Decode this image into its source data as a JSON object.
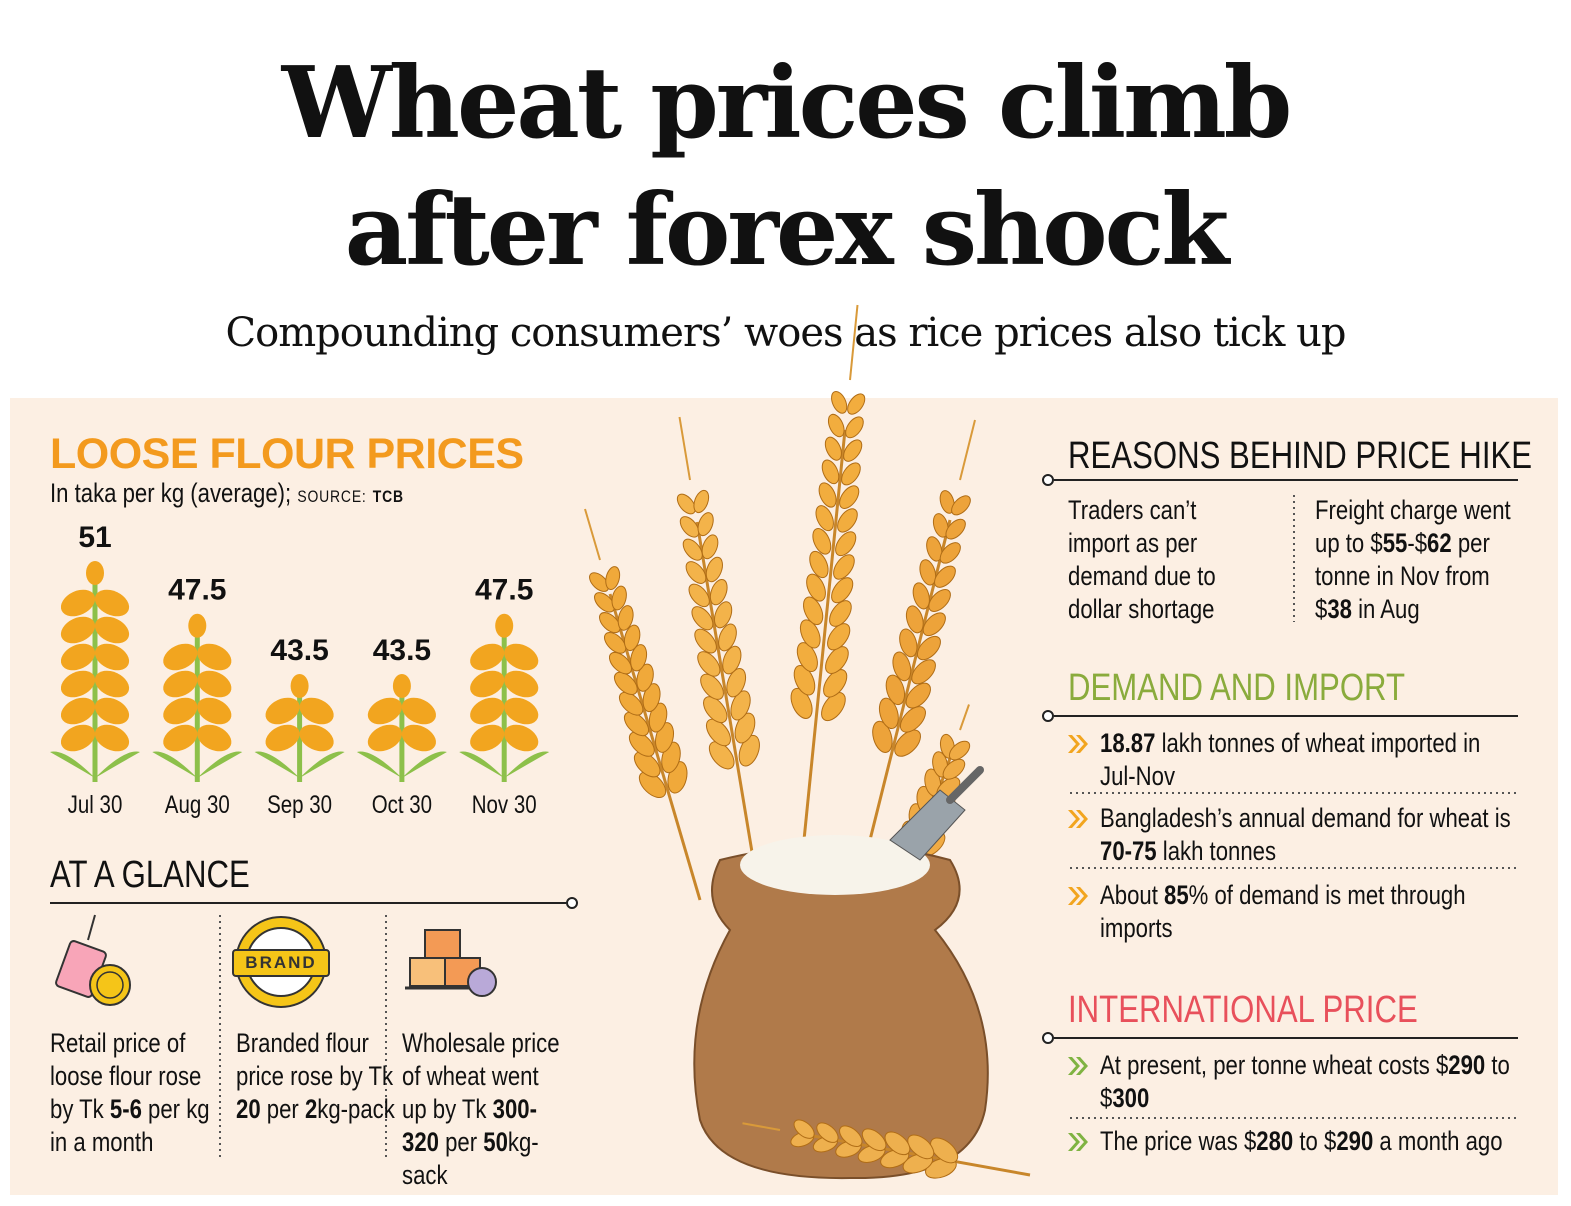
{
  "header": {
    "title_lines": [
      "Wheat prices climb",
      "after forex shock"
    ],
    "subtitle": "Compounding consumers’ woes as rice prices also tick up"
  },
  "chart_data": {
    "type": "bar",
    "title": "LOOSE FLOUR PRICES",
    "subtitle": "In taka per kg (average);",
    "source_label": "SOURCE:",
    "source": "TCB",
    "categories": [
      "Jul 30",
      "Aug 30",
      "Sep 30",
      "Oct 30",
      "Nov 30"
    ],
    "values": [
      51,
      47.5,
      43.5,
      43.5,
      47.5
    ],
    "color": "#f2a51f"
  },
  "at_a_glance": {
    "title": "AT A GLANCE",
    "icon_text": "BRAND",
    "items": [
      [
        {
          "text": "Retail price of loose flour rose by Tk "
        },
        {
          "text": "5-6",
          "bold": true
        },
        {
          "text": " per kg in a month"
        }
      ],
      [
        {
          "text": "Branded flour price rose by Tk "
        },
        {
          "text": "20",
          "bold": true
        },
        {
          "text": " per "
        },
        {
          "text": "2",
          "bold": true
        },
        {
          "text": "kg-pack"
        }
      ],
      [
        {
          "text": "Wholesale price of wheat went up by Tk "
        },
        {
          "text": "300-320",
          "bold": true
        },
        {
          "text": " per "
        },
        {
          "text": "50",
          "bold": true
        },
        {
          "text": "kg-sack"
        }
      ]
    ]
  },
  "reasons": {
    "title": "REASONS BEHIND PRICE HIKE",
    "items": [
      [
        {
          "text": "Traders can’t import as per demand due to dollar shortage"
        }
      ],
      [
        {
          "text": "Freight charge went up to $"
        },
        {
          "text": "55",
          "bold": true
        },
        {
          "text": "-$"
        },
        {
          "text": "62",
          "bold": true
        },
        {
          "text": " per tonne in Nov from $"
        },
        {
          "text": "38",
          "bold": true
        },
        {
          "text": " in Aug"
        }
      ]
    ]
  },
  "demand": {
    "title": "DEMAND AND IMPORT",
    "items": [
      [
        {
          "text": "18.87",
          "bold": true
        },
        {
          "text": " lakh tonnes of wheat imported in Jul-Nov"
        }
      ],
      [
        {
          "text": "Bangladesh’s annual demand for wheat is "
        },
        {
          "text": "70-75",
          "bold": true
        },
        {
          "text": " lakh tonnes"
        }
      ],
      [
        {
          "text": "About "
        },
        {
          "text": "85",
          "bold": true
        },
        {
          "text": "% of demand is met through imports"
        }
      ]
    ]
  },
  "international": {
    "title": "INTERNATIONAL PRICE",
    "items": [
      [
        {
          "text": "At present, per tonne wheat costs $"
        },
        {
          "text": "290",
          "bold": true
        },
        {
          "text": " to $"
        },
        {
          "text": "300",
          "bold": true
        }
      ],
      [
        {
          "text": "The price was $"
        },
        {
          "text": "280",
          "bold": true
        },
        {
          "text": " to $"
        },
        {
          "text": "290",
          "bold": true
        },
        {
          "text": " a month ago"
        }
      ]
    ]
  }
}
